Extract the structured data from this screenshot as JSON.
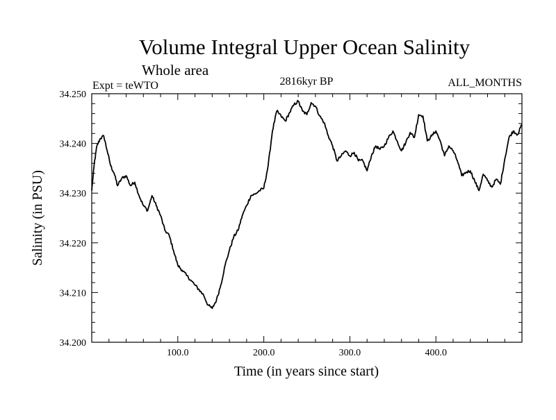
{
  "chart_data": {
    "type": "line",
    "title": "Volume Integral Upper Ocean Salinity",
    "subtitle": "Whole area",
    "left_label": "Expt = teWTO",
    "center_label": "2816kyr BP",
    "right_label": "ALL_MONTHS",
    "xlabel": "Time (in years since start)",
    "ylabel": "Salinity (in PSU)",
    "xlim": [
      0,
      500
    ],
    "ylim": [
      34.2,
      34.25
    ],
    "x_ticks": [
      100,
      200,
      300,
      400
    ],
    "x_tick_labels": [
      "100.0",
      "200.0",
      "300.0",
      "400.0"
    ],
    "y_ticks": [
      34.2,
      34.21,
      34.22,
      34.23,
      34.24,
      34.25
    ],
    "y_tick_labels": [
      "34.200",
      "34.210",
      "34.220",
      "34.230",
      "34.240",
      "34.250"
    ],
    "grid": false,
    "series": [
      {
        "name": "salinity",
        "x": [
          0,
          3,
          6,
          10,
          14,
          18,
          22,
          26,
          30,
          35,
          40,
          45,
          50,
          55,
          60,
          65,
          70,
          75,
          80,
          85,
          90,
          95,
          100,
          105,
          110,
          115,
          120,
          125,
          130,
          135,
          140,
          145,
          150,
          155,
          160,
          165,
          170,
          175,
          180,
          185,
          190,
          195,
          200,
          205,
          210,
          215,
          220,
          225,
          230,
          235,
          240,
          245,
          250,
          255,
          260,
          265,
          270,
          275,
          280,
          285,
          290,
          295,
          300,
          305,
          310,
          315,
          320,
          325,
          330,
          335,
          340,
          345,
          350,
          355,
          360,
          365,
          370,
          375,
          380,
          385,
          390,
          395,
          400,
          405,
          410,
          415,
          420,
          425,
          430,
          435,
          440,
          445,
          450,
          455,
          460,
          465,
          470,
          475,
          480,
          485,
          490,
          495,
          500
        ],
        "y": [
          34.2305,
          34.236,
          34.2395,
          34.241,
          34.2415,
          34.2385,
          34.2355,
          34.234,
          34.2315,
          34.233,
          34.2335,
          34.2315,
          34.2322,
          34.2295,
          34.2275,
          34.2265,
          34.2295,
          34.2275,
          34.2255,
          34.2225,
          34.2215,
          34.2185,
          34.2155,
          34.2145,
          34.2135,
          34.2125,
          34.2115,
          34.2105,
          34.2095,
          34.2075,
          34.2068,
          34.2085,
          34.2115,
          34.2155,
          34.2185,
          34.2212,
          34.2225,
          34.2255,
          34.2275,
          34.2295,
          34.2298,
          34.2305,
          34.231,
          34.2355,
          34.2425,
          34.2465,
          34.2455,
          34.2445,
          34.2462,
          34.2478,
          34.2485,
          34.2465,
          34.2458,
          34.2482,
          34.2475,
          34.2455,
          34.2442,
          34.2415,
          34.2395,
          34.2365,
          34.2375,
          34.2385,
          34.2375,
          34.2382,
          34.2365,
          34.2365,
          34.2345,
          34.2375,
          34.2395,
          34.2388,
          34.2395,
          34.2412,
          34.2425,
          34.2405,
          34.2385,
          34.2402,
          34.2422,
          34.2412,
          34.2458,
          34.2455,
          34.2405,
          34.2415,
          34.2425,
          34.2405,
          34.2375,
          34.2395,
          34.2385,
          34.2365,
          34.2335,
          34.2342,
          34.2345,
          34.2325,
          34.2305,
          34.2338,
          34.2325,
          34.2312,
          34.2328,
          34.2318,
          34.2368,
          34.2412,
          34.2425,
          34.2418,
          34.2438
        ]
      }
    ]
  }
}
